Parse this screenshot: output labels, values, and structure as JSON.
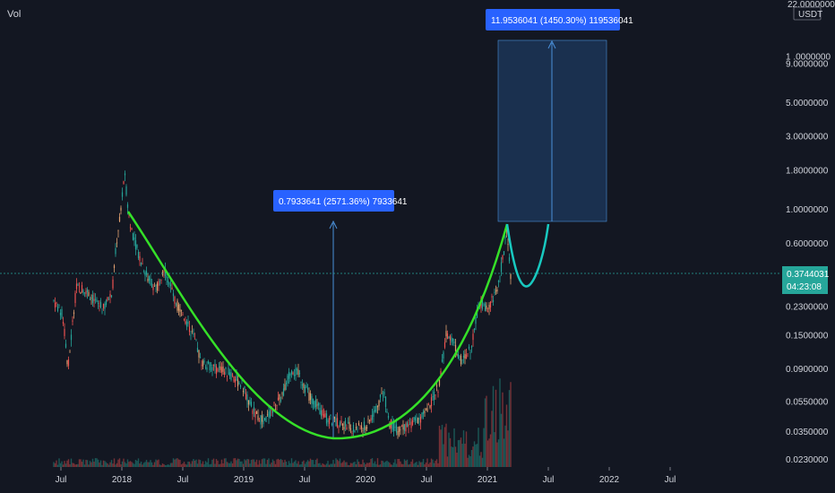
{
  "volume_label": "Vol",
  "currency": "USDT",
  "top_price_label": "22.0000000",
  "chart_data": {
    "type": "candlestick",
    "scale": "log",
    "price_ticks": [
      {
        "value": 10.0,
        "label": "1 .0000000"
      },
      {
        "value": 9.0,
        "label": "9.0000000"
      },
      {
        "value": 5.0,
        "label": "5.0000000"
      },
      {
        "value": 3.0,
        "label": "3.0000000"
      },
      {
        "value": 1.8,
        "label": "1.8000000"
      },
      {
        "value": 1.0,
        "label": "1.0000000"
      },
      {
        "value": 0.6,
        "label": "0.6000000"
      },
      {
        "value": 0.23,
        "label": "0.2300000"
      },
      {
        "value": 0.15,
        "label": "0.1500000"
      },
      {
        "value": 0.09,
        "label": "0.0900000"
      },
      {
        "value": 0.055,
        "label": "0.0550000"
      },
      {
        "value": 0.035,
        "label": "0.0350000"
      },
      {
        "value": 0.023,
        "label": "0.0230000"
      }
    ],
    "time_ticks": [
      "Jul",
      "2018",
      "Jul",
      "2019",
      "Jul",
      "2020",
      "Jul",
      "2021",
      "Jul",
      "2022",
      "Jul"
    ],
    "current_price": {
      "value": 0.3744031,
      "label": "0.3744031",
      "countdown": "04:23:08"
    },
    "measure_labels": [
      {
        "text": "0.7933641 (2571.36%) 7933641"
      },
      {
        "text": "11.9536041 (1450.30%) 119536041"
      }
    ],
    "colors": {
      "up": "#26a69a",
      "down": "#ef5350",
      "wick_mix": "#e0a070",
      "cup_curve": "#35e028",
      "projection_curve": "#18c9c0",
      "measure_box": "#1e3a5f",
      "measure_line": "#4a90d9",
      "label_bg": "#2962ff",
      "current_price_bg": "#26a69a"
    }
  }
}
